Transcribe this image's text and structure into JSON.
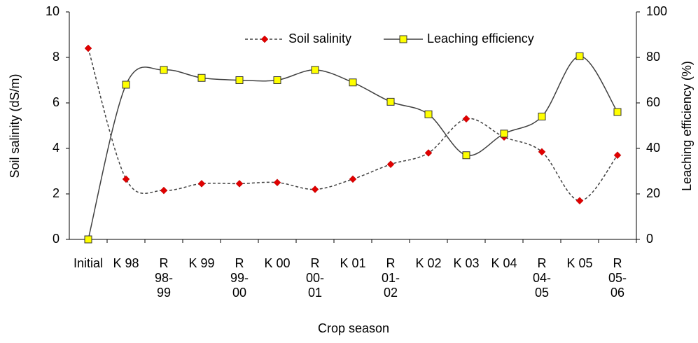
{
  "chart_data": {
    "type": "line",
    "x_label": "Crop season",
    "y_label": "Soil salinity (dS/m)",
    "y2_label": "Leaching efficiency (%)",
    "categories": [
      "Initial",
      "K 98",
      "R\n98-\n99",
      "K 99",
      "R\n99-\n00",
      "K 00",
      "R\n00-\n01",
      "K 01",
      "R\n01-\n02",
      "K 02",
      "K 03",
      "K 04",
      "R\n04-\n05",
      "K 05",
      "R\n05-\n06"
    ],
    "series": [
      {
        "name": "Soil salinity",
        "color": "#e00000",
        "line_color": "#404040",
        "line_style": "dashed",
        "marker": "diamond",
        "values": [
          8.4,
          2.65,
          2.15,
          2.45,
          2.45,
          2.5,
          2.2,
          2.65,
          3.3,
          3.8,
          5.3,
          4.5,
          3.85,
          1.7,
          3.7
        ]
      },
      {
        "name": "Leaching efficiency",
        "color": "#ffff00",
        "line_color": "#404040",
        "line_style": "solid",
        "marker": "square",
        "axis": "y2",
        "values": [
          0,
          68,
          74.5,
          71,
          70,
          70,
          74.5,
          69,
          60.5,
          55,
          37,
          46.5,
          54,
          80.5,
          56
        ]
      }
    ],
    "ylim": [
      0,
      10
    ],
    "yticks": [
      0,
      2,
      4,
      6,
      8,
      10
    ],
    "y2lim": [
      0,
      100
    ],
    "y2ticks": [
      0,
      20,
      40,
      60,
      80,
      100
    ],
    "grid": false,
    "legend": "top"
  }
}
